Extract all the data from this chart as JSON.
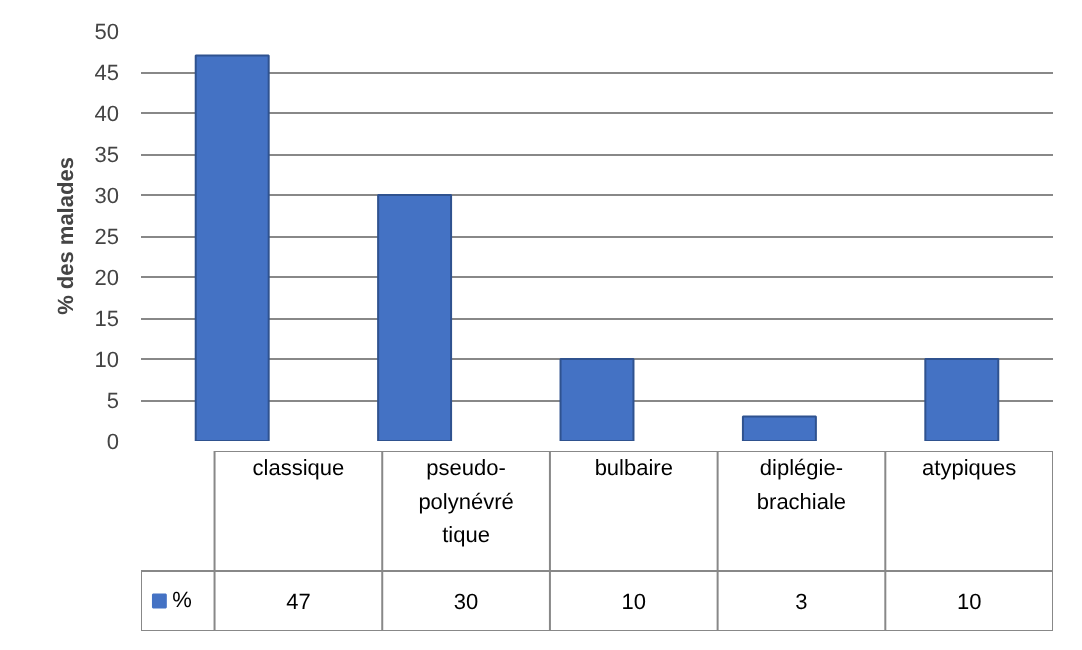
{
  "chart_data": {
    "type": "bar",
    "ylabel": "% des malades",
    "categories": [
      "classique",
      "pseudo-polynévrétique",
      "bulbaire",
      "diplégie-brachiale",
      "atypiques"
    ],
    "series": [
      {
        "name": "%",
        "color": "#4472c4",
        "values": [
          47,
          30,
          10,
          3,
          10
        ]
      }
    ],
    "ylim": [
      0,
      50
    ],
    "yticks": [
      0,
      5,
      10,
      15,
      20,
      25,
      30,
      35,
      40,
      45,
      50
    ],
    "grid": "y",
    "data_labels": true,
    "legend": "bottom left"
  }
}
